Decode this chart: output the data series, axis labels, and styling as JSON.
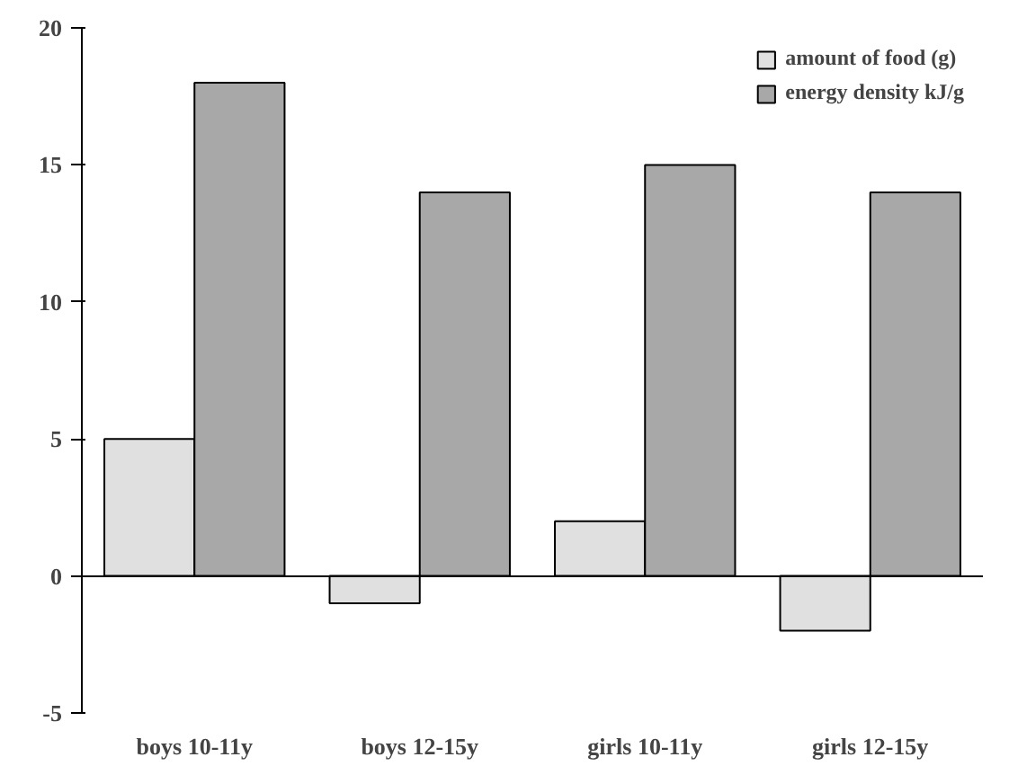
{
  "chart_data": {
    "type": "bar",
    "categories": [
      "boys 10-11y",
      "boys 12-15y",
      "girls 10-11y",
      "girls 12-15y"
    ],
    "series": [
      {
        "name": "amount of food (g)",
        "color": "#e0e0e0",
        "values": [
          5,
          -1,
          2,
          -2
        ]
      },
      {
        "name": "energy density kJ/g",
        "color": "#a8a8a8",
        "values": [
          18,
          14,
          15,
          14
        ]
      }
    ],
    "ylim": [
      -5,
      20
    ],
    "yticks": [
      {
        "value": -5,
        "label": "-5"
      },
      0,
      5,
      10,
      15,
      20
    ],
    "legend": "top right"
  }
}
